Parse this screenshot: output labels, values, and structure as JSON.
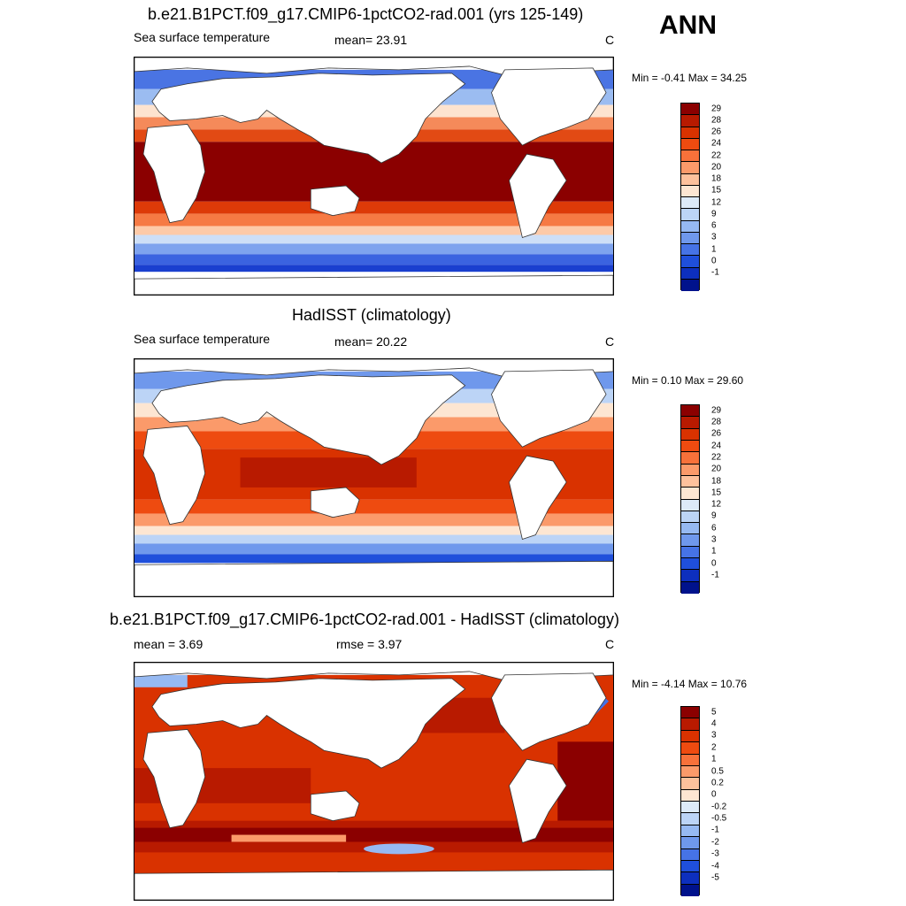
{
  "season_label": "ANN",
  "panels": [
    {
      "title": "b.e21.B1PCT.f09_g17.CMIP6-1pctCO2-rad.001 (yrs 125-149)",
      "left_label": "Sea surface temperature",
      "center_label": "mean=  23.91",
      "units": "C",
      "minmax": "Min =  -0.41 Max =  34.25",
      "colorbar_levels": [
        "29",
        "28",
        "26",
        "24",
        "22",
        "20",
        "18",
        "15",
        "12",
        "9",
        "6",
        "3",
        "1",
        "0",
        "-1"
      ],
      "colorbar_colors": [
        "#8b0000",
        "#b81a00",
        "#d93200",
        "#ee4b10",
        "#f7713a",
        "#fb9a6a",
        "#fdc19c",
        "#fde6d2",
        "#ddeaf8",
        "#bcd4f6",
        "#96b9f2",
        "#6f98ec",
        "#4673e6",
        "#1f4fdb",
        "#0d2fbe",
        "#00128c"
      ]
    },
    {
      "title": "HadISST (climatology)",
      "left_label": "Sea surface temperature",
      "center_label": "mean=  20.22",
      "units": "C",
      "minmax": "Min =   0.10 Max =  29.60",
      "colorbar_levels": [
        "29",
        "28",
        "26",
        "24",
        "22",
        "20",
        "18",
        "15",
        "12",
        "9",
        "6",
        "3",
        "1",
        "0",
        "-1"
      ],
      "colorbar_colors": [
        "#8b0000",
        "#b81a00",
        "#d93200",
        "#ee4b10",
        "#f7713a",
        "#fb9a6a",
        "#fdc19c",
        "#fde6d2",
        "#ddeaf8",
        "#bcd4f6",
        "#96b9f2",
        "#6f98ec",
        "#4673e6",
        "#1f4fdb",
        "#0d2fbe",
        "#00128c"
      ]
    },
    {
      "title": "b.e21.B1PCT.f09_g17.CMIP6-1pctCO2-rad.001 - HadISST (climatology)",
      "left_label": "mean =   3.69",
      "center_label": "rmse =   3.97",
      "units": "C",
      "minmax": "Min =  -4.14 Max =  10.76",
      "colorbar_levels": [
        "5",
        "4",
        "3",
        "2",
        "1",
        "0.5",
        "0.2",
        "0",
        "-0.2",
        "-0.5",
        "-1",
        "-2",
        "-3",
        "-4",
        "-5"
      ],
      "colorbar_colors": [
        "#8b0000",
        "#b81a00",
        "#d93200",
        "#ee4b10",
        "#f7713a",
        "#fb9a6a",
        "#fdc19c",
        "#fde6d2",
        "#ddeaf8",
        "#bcd4f6",
        "#96b9f2",
        "#6f98ec",
        "#4673e6",
        "#1f4fdb",
        "#0d2fbe",
        "#00128c"
      ]
    }
  ]
}
